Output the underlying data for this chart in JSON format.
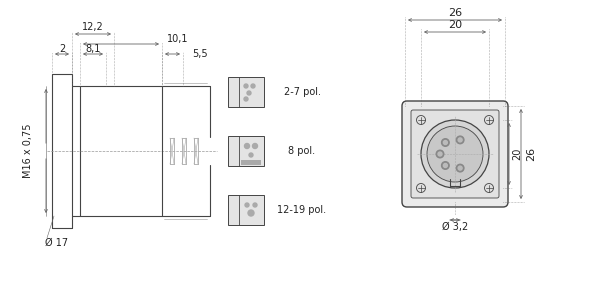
{
  "bg_color": "#ffffff",
  "line_color": "#444444",
  "dim_color": "#666666",
  "gray_light": "#cccccc",
  "gray_med": "#aaaaaa",
  "gray_fill": "#e8e8e8",
  "annotations": {
    "dim_122": "12,2",
    "dim_101": "10,1",
    "dim_81": "8,1",
    "dim_2": "2",
    "dim_55": "5,5",
    "dim_17": "Ø 17",
    "dim_m16": "M16 x 0,75",
    "dim_26w": "26",
    "dim_20w": "20",
    "dim_26h": "26",
    "dim_20h": "20",
    "dim_32": "Ø 3,2",
    "label_27": "2-7 pol.",
    "label_8": "8 pol.",
    "label_1219": "12-19 pol."
  }
}
